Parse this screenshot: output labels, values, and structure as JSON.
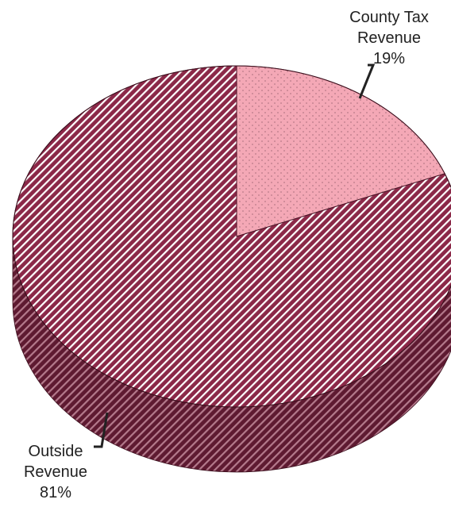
{
  "chart_data": {
    "type": "pie",
    "style": "3d",
    "title": "",
    "slices": [
      {
        "label_lines": [
          "County Tax",
          "Revenue",
          "19%"
        ],
        "value": 19,
        "pattern": "dots",
        "color": "#f4a8b6",
        "pattern_color": "#b87a88"
      },
      {
        "label_lines": [
          "Outside",
          "Revenue",
          "81%"
        ],
        "value": 81,
        "pattern": "diagonal",
        "color": "#8b2848",
        "pattern_color": "#ffffff"
      }
    ],
    "start_angle_deg": 0,
    "direction": "clockwise"
  }
}
